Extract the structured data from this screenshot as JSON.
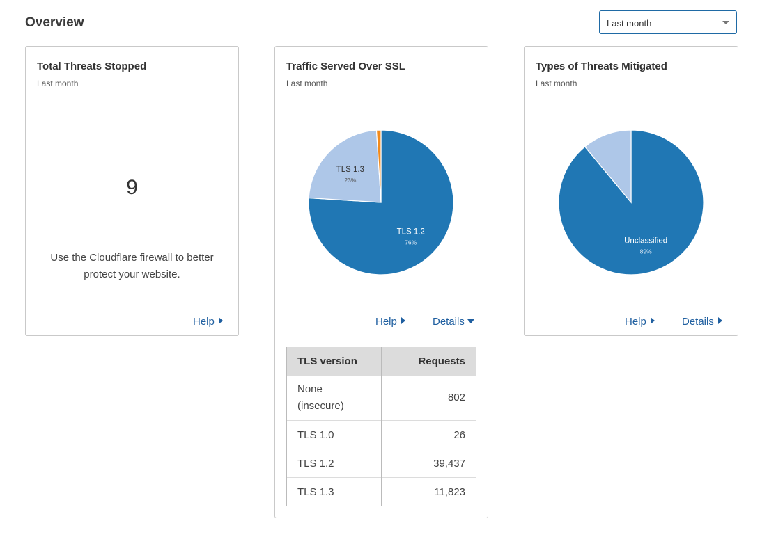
{
  "page": {
    "title": "Overview"
  },
  "period_select": {
    "value": "Last month"
  },
  "cards": {
    "threats": {
      "title": "Total Threats Stopped",
      "subtitle": "Last month",
      "value": "9",
      "hint": "Use the Cloudflare firewall to better protect your website.",
      "help_label": "Help"
    },
    "ssl": {
      "title": "Traffic Served Over SSL",
      "subtitle": "Last month",
      "help_label": "Help",
      "details_label": "Details",
      "table": {
        "headers": [
          "TLS version",
          "Requests"
        ],
        "rows": [
          {
            "version": "None (insecure)",
            "requests": "802"
          },
          {
            "version": "TLS 1.0",
            "requests": "26"
          },
          {
            "version": "TLS 1.2",
            "requests": "39,437"
          },
          {
            "version": "TLS 1.3",
            "requests": "11,823"
          }
        ]
      }
    },
    "types": {
      "title": "Types of Threats Mitigated",
      "subtitle": "Last month",
      "help_label": "Help",
      "details_label": "Details"
    }
  },
  "colors": {
    "dark_blue": "#2077b4",
    "light_blue": "#aec7e8",
    "orange": "#f28b1d",
    "link": "#1f5fa0"
  },
  "chart_data": [
    {
      "type": "pie",
      "chart": "ssl",
      "slices": [
        {
          "label": "TLS 1.2",
          "percent_label": "76%",
          "value": 76,
          "color": "#2077b4",
          "show_label": true
        },
        {
          "label": "TLS 1.3",
          "percent_label": "23%",
          "value": 23,
          "color": "#aec7e8",
          "show_label": true
        },
        {
          "label": "",
          "percent_label": "",
          "value": 1,
          "color": "#f28b1d",
          "show_label": false
        }
      ]
    },
    {
      "type": "pie",
      "chart": "types",
      "slices": [
        {
          "label": "Unclassified",
          "percent_label": "89%",
          "value": 89,
          "color": "#2077b4",
          "show_label": true
        },
        {
          "label": "",
          "percent_label": "",
          "value": 11,
          "color": "#aec7e8",
          "show_label": false
        }
      ]
    }
  ]
}
